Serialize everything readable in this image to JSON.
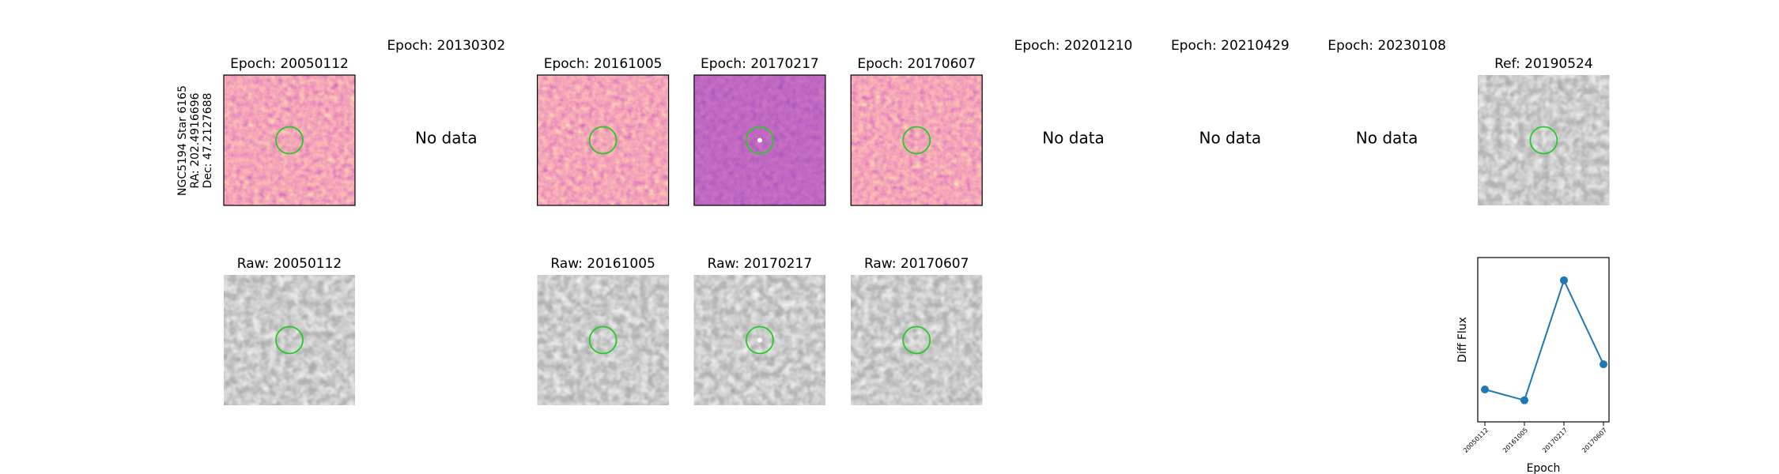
{
  "label": [
    "NGC5194 Star 6165",
    "RA: 202.4916696",
    "Dec: 47.2127688"
  ],
  "top_row": [
    {
      "title": "Epoch: 20050112"
    },
    {
      "title": "Epoch: 20130302",
      "note": "No data"
    },
    {
      "title": "Epoch: 20161005"
    },
    {
      "title": "Epoch: 20170217"
    },
    {
      "title": "Epoch: 20170607"
    },
    {
      "title": "Epoch: 20201210",
      "note": "No data"
    },
    {
      "title": "Epoch: 20210429",
      "note": "No data"
    },
    {
      "title": "Epoch: 20230108",
      "note": "No data"
    },
    {
      "title": "Ref: 20190524"
    }
  ],
  "bottom_row": [
    "Raw: 20050112",
    null,
    "Raw: 20161005",
    "Raw: 20170217",
    "Raw: 20170607",
    null,
    null,
    null,
    null
  ],
  "chart_data": {
    "type": "line",
    "xlabel": "Epoch",
    "ylabel": "Diff Flux",
    "categories": [
      "20050112",
      "20161005",
      "20170217",
      "20170607"
    ],
    "series": [
      {
        "color": "#1f77b4",
        "values": [
          0.09,
          0,
          1,
          0.3
        ]
      }
    ],
    "ylim": [
      -0.18,
      1.19
    ]
  }
}
